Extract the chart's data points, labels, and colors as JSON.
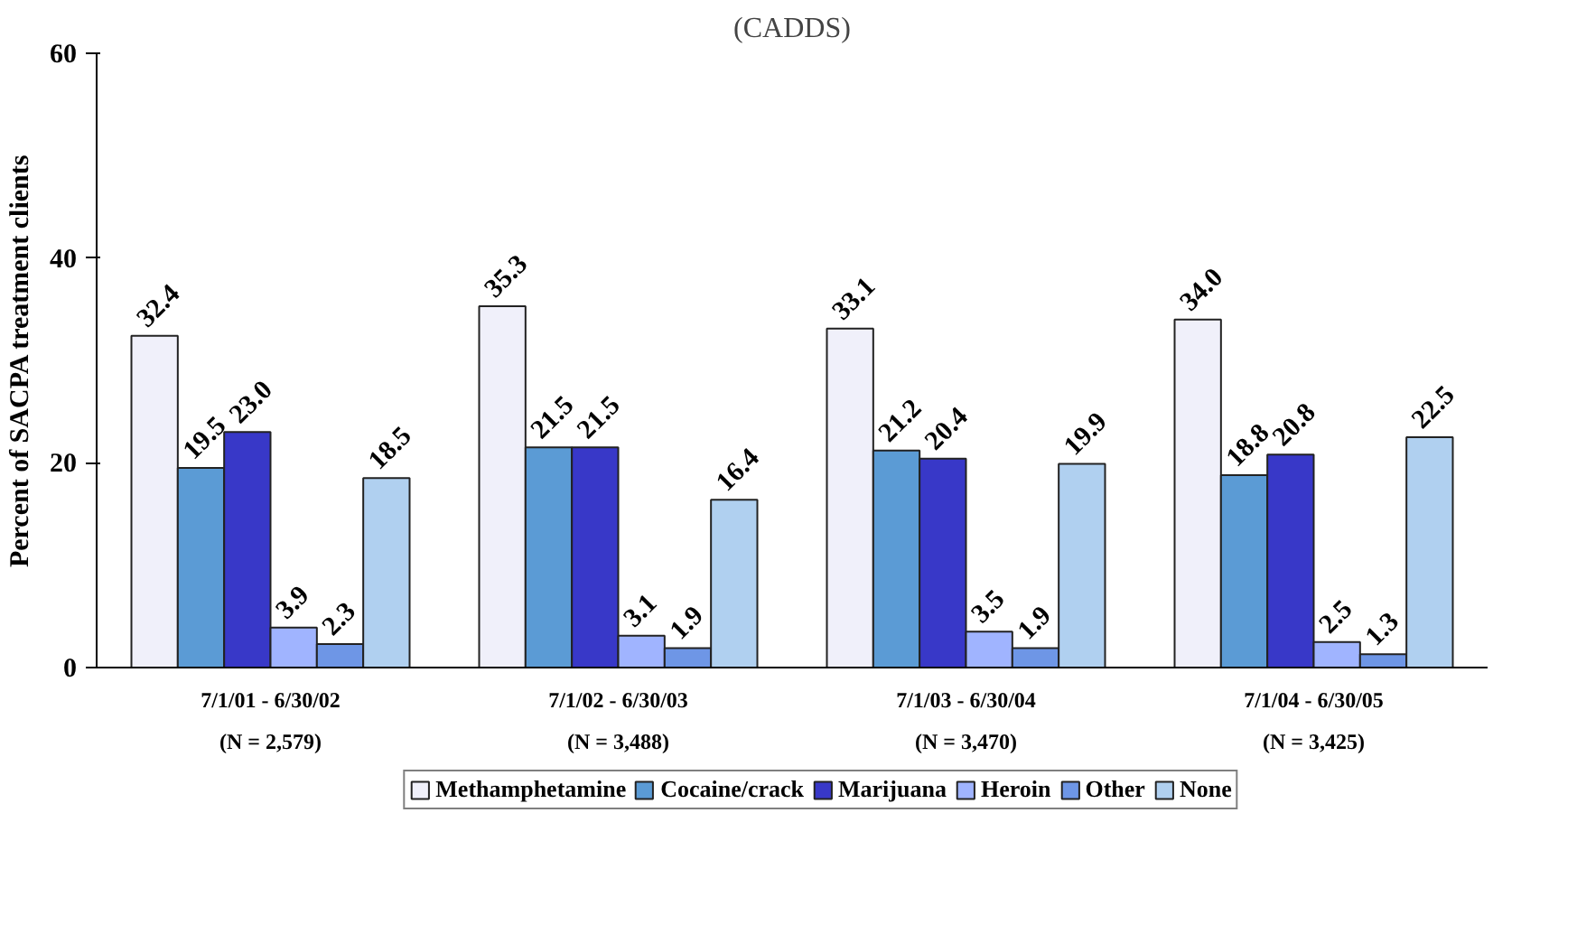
{
  "chart_data": {
    "type": "bar",
    "title": "(CADDS)",
    "ylabel": "Percent of SACPA treatment clients",
    "categories": [
      "7/1/01 - 6/30/02\n(N = 2,579)",
      "7/1/02 - 6/30/03\n(N = 3,488)",
      "7/1/03 - 6/30/04\n(N = 3,470)",
      "7/1/04 - 6/30/05\n(N = 3,425)"
    ],
    "series": [
      {
        "name": "Methamphetamine",
        "color": "#f0f0fa",
        "values": [
          32.4,
          35.3,
          33.1,
          34.0
        ],
        "value_labels": [
          "32.4",
          "35.3",
          "33.1",
          "34.0"
        ]
      },
      {
        "name": "Cocaine/crack",
        "color": "#5b9bd5",
        "values": [
          19.5,
          21.5,
          21.2,
          18.8
        ],
        "value_labels": [
          "19.5",
          "21.5",
          "21.2",
          "18.8"
        ]
      },
      {
        "name": "Marijuana",
        "color": "#3838c8",
        "values": [
          23.0,
          21.5,
          20.4,
          20.8
        ],
        "value_labels": [
          "23.0",
          "21.5",
          "20.4",
          "20.8"
        ]
      },
      {
        "name": "Heroin",
        "color": "#a0b4ff",
        "values": [
          3.9,
          3.1,
          3.5,
          2.5
        ],
        "value_labels": [
          "3.9",
          "3.1",
          "3.5",
          "2.5"
        ]
      },
      {
        "name": "Other",
        "color": "#6e96e6",
        "values": [
          2.3,
          1.9,
          1.9,
          1.3
        ],
        "value_labels": [
          "2.3",
          "1.9",
          "1.9",
          "1.3"
        ]
      },
      {
        "name": "None",
        "color": "#b0d0f0",
        "values": [
          18.5,
          16.4,
          19.9,
          22.5
        ],
        "value_labels": [
          "18.5",
          "16.4",
          "19.9",
          "22.5"
        ]
      }
    ],
    "ylim": [
      0,
      60
    ],
    "yticks": [
      0,
      20,
      40,
      60
    ],
    "grid": false,
    "legend": "bottom"
  }
}
